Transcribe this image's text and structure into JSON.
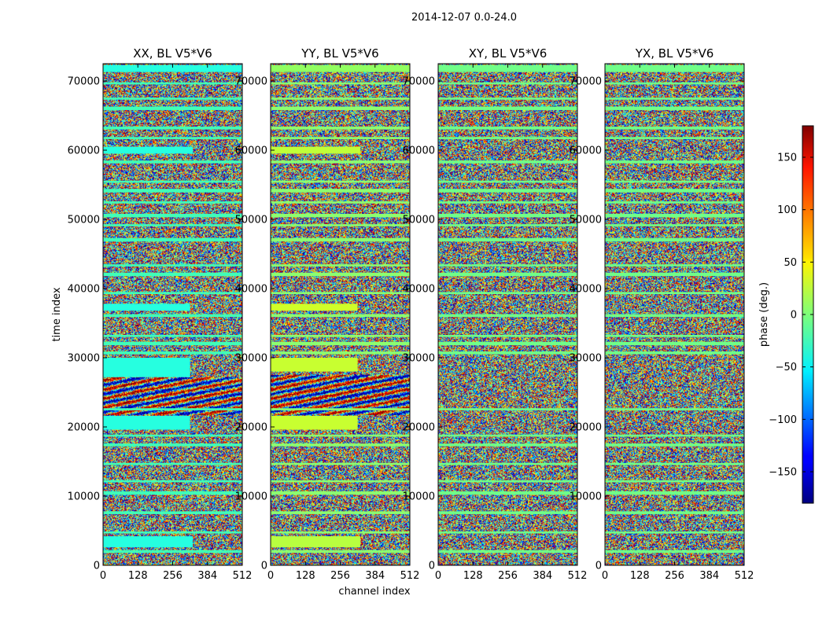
{
  "chart_data": {
    "type": "heatmap",
    "title": "2014-12-07 0.0-24.0",
    "xlabel": "channel index",
    "ylabel": "time index",
    "xlim": [
      0,
      512
    ],
    "ylim": [
      0,
      72500
    ],
    "x_ticks": [
      0,
      128,
      256,
      384,
      512
    ],
    "y_ticks": [
      0,
      10000,
      20000,
      30000,
      40000,
      50000,
      60000,
      70000
    ],
    "colormap": "jet",
    "panels": [
      {
        "id": "xx",
        "title": "XX, BL V5*V6",
        "polarization": "XX",
        "flagged_color": "#40ffb8",
        "bands": [
          {
            "y0": 2600,
            "y1": 4200,
            "color": "#26ffe0",
            "x_end": 330
          },
          {
            "y0": 19600,
            "y1": 21600,
            "color": "#26ffe0",
            "x_end": 320
          },
          {
            "y0": 27200,
            "y1": 30000,
            "color": "#26ffe0",
            "x_end": 320
          },
          {
            "y0": 36800,
            "y1": 37800,
            "color": "#26ffe0",
            "x_end": 320
          },
          {
            "y0": 59500,
            "y1": 60500,
            "color": "#26ffe0",
            "x_end": 330
          },
          {
            "y0": 71300,
            "y1": 72300,
            "color": "#26ffe0",
            "x_end": 512
          }
        ],
        "fringe_zones": [
          {
            "y0": 21800,
            "y1": 27200
          }
        ]
      },
      {
        "id": "yy",
        "title": "YY, BL V5*V6",
        "polarization": "YY",
        "flagged_color": "#8cff70",
        "bands": [
          {
            "y0": 2600,
            "y1": 4200,
            "color": "#b8ff40",
            "x_end": 330
          },
          {
            "y0": 19600,
            "y1": 21600,
            "color": "#c8ff30",
            "x_end": 320
          },
          {
            "y0": 28000,
            "y1": 30000,
            "color": "#c8ff30",
            "x_end": 320
          },
          {
            "y0": 36800,
            "y1": 37800,
            "color": "#d0ff28",
            "x_end": 320
          },
          {
            "y0": 59500,
            "y1": 60500,
            "color": "#c0ff38",
            "x_end": 330
          },
          {
            "y0": 71300,
            "y1": 72300,
            "color": "#90ff60",
            "x_end": 512
          }
        ],
        "fringe_zones": [
          {
            "y0": 21800,
            "y1": 27600
          }
        ]
      },
      {
        "id": "xy",
        "title": "XY, BL V5*V6",
        "polarization": "XY",
        "flagged_color": "#70ff88",
        "bands": [
          {
            "y0": 71300,
            "y1": 72300,
            "color": "#70ff88",
            "x_end": 512
          }
        ],
        "fringe_zones": []
      },
      {
        "id": "yx",
        "title": "YX, BL V5*V6",
        "polarization": "YX",
        "flagged_color": "#70ff88",
        "bands": [
          {
            "y0": 71300,
            "y1": 72300,
            "color": "#70ff88",
            "x_end": 512
          }
        ],
        "fringe_zones": []
      }
    ],
    "flagged_rows": [
      [
        1800,
        2200
      ],
      [
        4600,
        4900
      ],
      [
        7400,
        7800
      ],
      [
        10200,
        10700
      ],
      [
        12000,
        12300
      ],
      [
        14500,
        14800
      ],
      [
        17200,
        17600
      ],
      [
        18600,
        18900
      ],
      [
        22400,
        22700
      ],
      [
        30500,
        30900
      ],
      [
        31800,
        32300
      ],
      [
        33000,
        33300
      ],
      [
        35900,
        36300
      ],
      [
        39200,
        39500
      ],
      [
        41800,
        42300
      ],
      [
        43200,
        43500
      ],
      [
        46800,
        47300
      ],
      [
        49000,
        49300
      ],
      [
        50300,
        50800
      ],
      [
        52300,
        52600
      ],
      [
        53900,
        54400
      ],
      [
        55300,
        55600
      ],
      [
        58100,
        58500
      ],
      [
        61600,
        61900
      ],
      [
        63000,
        63400
      ],
      [
        65800,
        66300
      ],
      [
        67300,
        67600
      ],
      [
        69500,
        69800
      ]
    ],
    "colorbar": {
      "label": "phase (deg.)",
      "range": [
        -180,
        180
      ],
      "ticks": [
        -150,
        -100,
        -50,
        0,
        50,
        100,
        150
      ],
      "tick_labels": [
        "−150",
        "−100",
        "−50",
        "0",
        "50",
        "100",
        "150"
      ]
    }
  }
}
